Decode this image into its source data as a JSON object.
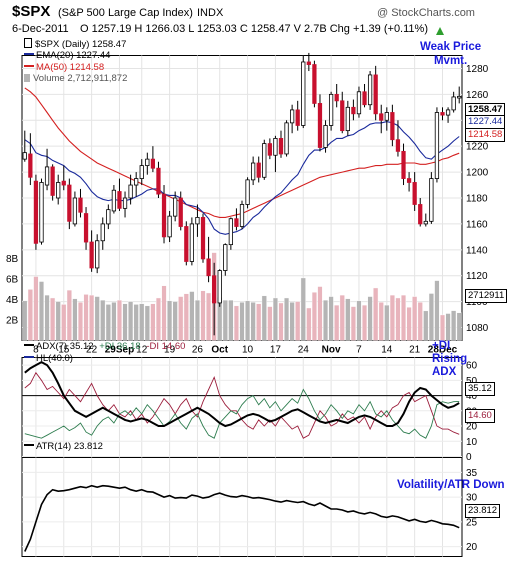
{
  "header": {
    "symbol": "$SPX",
    "name": "(S&P 500 Large Cap Index)",
    "exchange": "INDX",
    "credit": "@ StockCharts.com",
    "date": "6-Dec-2011",
    "ohlc": "O 1257.19  H 1266.03  L 1253.03  C 1258.47  V 2.7B  Chg +1.39 (+0.11%)",
    "chg_icon": "up-triangle-icon"
  },
  "legend": {
    "price": "$SPX (Daily) 1258.47",
    "ema": "EMA(20) 1227.44",
    "ma": "MA(50) 1214.58",
    "volume": "Volume 2,712,911,872",
    "adx": "ADX(7) 35.12",
    "pdi": "+DI 36.18",
    "mdi": "-DI 14.60",
    "hl": "HL(40.0)",
    "atr": "ATR(14) 23.812"
  },
  "annotations": {
    "weak_price": "Weak Price\nMvmt.",
    "di_rising": "+DI\nRising\nADX",
    "volatility": "Volatility/ATR Down"
  },
  "value_labels": {
    "close": "1258.47",
    "ema": "1227.44",
    "ma": "1214.58",
    "volume": "2712911",
    "adx": "35.12",
    "mdi": "14.60",
    "atr": "23.812"
  },
  "colors": {
    "up": "#ffffff",
    "down": "#c8102e",
    "ema": "#1a2a9c",
    "ma": "#d42020",
    "vol_up": "#b4b4b4",
    "vol_down": "#e8b4bc",
    "adx": "#000000",
    "pdi": "#2e7d4f",
    "mdi": "#9c1e3c",
    "annotation": "#1a1adc"
  },
  "chart_data": [
    {
      "type": "candlestick",
      "title": "$SPX (Daily)",
      "y_ticks": [
        1080,
        1100,
        1120,
        1140,
        1160,
        1180,
        1200,
        1220,
        1240,
        1260,
        1280
      ],
      "ylim": [
        1070,
        1290
      ],
      "x_tick_labels": [
        "8",
        "15",
        "22",
        "29Sep",
        "12",
        "19",
        "26",
        "Oct",
        "10",
        "17",
        "24",
        "Nov",
        "7",
        "14",
        "21",
        "28Dec"
      ],
      "x_tick_index": [
        2,
        7,
        12,
        17,
        21,
        26,
        31,
        35,
        40,
        45,
        50,
        55,
        60,
        65,
        70,
        75
      ],
      "candles": [
        [
          1210,
          1232,
          1208,
          1215
        ],
        [
          1214,
          1230,
          1190,
          1196
        ],
        [
          1193,
          1198,
          1140,
          1145
        ],
        [
          1146,
          1195,
          1144,
          1192
        ],
        [
          1190,
          1218,
          1186,
          1204
        ],
        [
          1204,
          1206,
          1178,
          1182
        ],
        [
          1180,
          1198,
          1175,
          1192
        ],
        [
          1193,
          1205,
          1186,
          1190
        ],
        [
          1190,
          1195,
          1156,
          1162
        ],
        [
          1160,
          1185,
          1158,
          1180
        ],
        [
          1180,
          1187,
          1165,
          1169
        ],
        [
          1168,
          1173,
          1140,
          1146
        ],
        [
          1146,
          1155,
          1123,
          1126
        ],
        [
          1126,
          1152,
          1122,
          1147
        ],
        [
          1147,
          1165,
          1140,
          1160
        ],
        [
          1160,
          1175,
          1156,
          1171
        ],
        [
          1170,
          1190,
          1168,
          1186
        ],
        [
          1185,
          1195,
          1170,
          1172
        ],
        [
          1172,
          1185,
          1165,
          1180
        ],
        [
          1180,
          1198,
          1175,
          1190
        ],
        [
          1190,
          1200,
          1181,
          1195
        ],
        [
          1195,
          1210,
          1190,
          1205
        ],
        [
          1205,
          1215,
          1198,
          1210
        ],
        [
          1210,
          1220,
          1200,
          1203
        ],
        [
          1203,
          1208,
          1180,
          1183
        ],
        [
          1183,
          1190,
          1145,
          1150
        ],
        [
          1150,
          1170,
          1146,
          1166
        ],
        [
          1166,
          1185,
          1162,
          1180
        ],
        [
          1180,
          1185,
          1155,
          1158
        ],
        [
          1158,
          1162,
          1128,
          1131
        ],
        [
          1131,
          1165,
          1128,
          1160
        ],
        [
          1160,
          1175,
          1150,
          1165
        ],
        [
          1165,
          1168,
          1130,
          1133
        ],
        [
          1133,
          1150,
          1115,
          1120
        ],
        [
          1120,
          1130,
          1074,
          1099
        ],
        [
          1099,
          1125,
          1096,
          1124
        ],
        [
          1124,
          1145,
          1120,
          1144
        ],
        [
          1144,
          1165,
          1140,
          1164
        ],
        [
          1164,
          1172,
          1155,
          1158
        ],
        [
          1158,
          1178,
          1156,
          1175
        ],
        [
          1175,
          1196,
          1172,
          1194
        ],
        [
          1194,
          1212,
          1190,
          1207
        ],
        [
          1207,
          1212,
          1192,
          1196
        ],
        [
          1196,
          1225,
          1194,
          1222
        ],
        [
          1222,
          1226,
          1210,
          1213
        ],
        [
          1213,
          1228,
          1200,
          1226
        ],
        [
          1226,
          1232,
          1211,
          1214
        ],
        [
          1214,
          1240,
          1212,
          1238
        ],
        [
          1238,
          1252,
          1230,
          1248
        ],
        [
          1248,
          1255,
          1232,
          1236
        ],
        [
          1236,
          1290,
          1234,
          1285
        ],
        [
          1285,
          1292,
          1278,
          1283
        ],
        [
          1283,
          1286,
          1250,
          1253
        ],
        [
          1253,
          1260,
          1216,
          1219
        ],
        [
          1219,
          1240,
          1215,
          1236
        ],
        [
          1236,
          1262,
          1232,
          1260
        ],
        [
          1260,
          1268,
          1250,
          1255
        ],
        [
          1255,
          1262,
          1230,
          1232
        ],
        [
          1232,
          1255,
          1228,
          1250
        ],
        [
          1250,
          1256,
          1240,
          1245
        ],
        [
          1245,
          1266,
          1242,
          1262
        ],
        [
          1262,
          1268,
          1250,
          1252
        ],
        [
          1252,
          1278,
          1248,
          1275
        ],
        [
          1275,
          1282,
          1240,
          1245
        ],
        [
          1245,
          1252,
          1230,
          1240
        ],
        [
          1240,
          1250,
          1232,
          1246
        ],
        [
          1246,
          1252,
          1220,
          1225
        ],
        [
          1225,
          1240,
          1212,
          1216
        ],
        [
          1216,
          1222,
          1190,
          1195
        ],
        [
          1195,
          1200,
          1185,
          1192
        ],
        [
          1192,
          1200,
          1170,
          1175
        ],
        [
          1175,
          1180,
          1158,
          1160
        ],
        [
          1160,
          1168,
          1158,
          1162
        ],
        [
          1162,
          1200,
          1160,
          1195
        ],
        [
          1195,
          1250,
          1192,
          1246
        ],
        [
          1246,
          1250,
          1240,
          1244
        ],
        [
          1244,
          1250,
          1238,
          1248
        ],
        [
          1248,
          1262,
          1246,
          1258
        ],
        [
          1257.19,
          1266.03,
          1253.03,
          1258.47
        ]
      ],
      "ema20": [
        1225,
        1222,
        1215,
        1213,
        1212,
        1209,
        1207,
        1205,
        1201,
        1199,
        1196,
        1191,
        1185,
        1181,
        1179,
        1178,
        1179,
        1178,
        1178,
        1179,
        1181,
        1183,
        1186,
        1187,
        1187,
        1183,
        1182,
        1182,
        1180,
        1175,
        1174,
        1173,
        1169,
        1164,
        1156,
        1153,
        1152,
        1153,
        1154,
        1156,
        1160,
        1165,
        1168,
        1173,
        1177,
        1181,
        1184,
        1189,
        1194,
        1198,
        1206,
        1213,
        1217,
        1217,
        1219,
        1223,
        1226,
        1226,
        1228,
        1229,
        1232,
        1234,
        1237,
        1238,
        1238,
        1239,
        1238,
        1236,
        1231,
        1227,
        1222,
        1216,
        1211,
        1210,
        1214,
        1217,
        1220,
        1224,
        1227.44
      ],
      "ma50": [
        1265,
        1262,
        1258,
        1252,
        1246,
        1240,
        1234,
        1229,
        1224,
        1220,
        1216,
        1213,
        1210,
        1207,
        1205,
        1203,
        1201,
        1199,
        1197,
        1195,
        1193,
        1191,
        1189,
        1187,
        1185,
        1183,
        1181,
        1179,
        1177,
        1175,
        1173,
        1171,
        1169,
        1168,
        1166,
        1165,
        1165,
        1166,
        1167,
        1168,
        1170,
        1172,
        1174,
        1176,
        1178,
        1180,
        1182,
        1184,
        1186,
        1188,
        1190,
        1192,
        1194,
        1196,
        1197,
        1198,
        1199,
        1200,
        1201,
        1202,
        1203,
        1203,
        1204,
        1205,
        1205,
        1206,
        1206,
        1206,
        1207,
        1207,
        1207,
        1206,
        1206,
        1207,
        1208,
        1210,
        1211,
        1213,
        1214.58
      ]
    },
    {
      "type": "bar",
      "title": "Volume",
      "y_ticks": [
        "2B",
        "4B",
        "6B",
        "8B"
      ],
      "ylim": [
        0,
        9
      ],
      "unit": "billions"
    },
    {
      "type": "line",
      "title": "ADX(7) / +DI / -DI",
      "y_ticks": [
        0,
        10,
        20,
        30,
        40,
        50,
        60
      ],
      "ylim": [
        0,
        65
      ],
      "hline": 40,
      "series": [
        {
          "name": "ADX(7)",
          "values": [
            55,
            58,
            60,
            62,
            60,
            55,
            48,
            40,
            35,
            30,
            28,
            26,
            28,
            30,
            32,
            30,
            28,
            26,
            24,
            23,
            24,
            25,
            24,
            22,
            20,
            20,
            22,
            24,
            26,
            28,
            30,
            32,
            30,
            28,
            25,
            22,
            20,
            21,
            23,
            25,
            27,
            28,
            27,
            25,
            23,
            24,
            26,
            28,
            30,
            31,
            29,
            27,
            25,
            23,
            22,
            23,
            24,
            23,
            22,
            24,
            26,
            27,
            26,
            24,
            22,
            20,
            20,
            22,
            28,
            36,
            42,
            45,
            44,
            40,
            37,
            34,
            32,
            33,
            35.12
          ]
        },
        {
          "name": "+DI",
          "values": [
            15,
            14,
            13,
            12,
            14,
            16,
            18,
            20,
            17,
            19,
            22,
            16,
            14,
            20,
            24,
            26,
            22,
            28,
            30,
            27,
            32,
            28,
            34,
            30,
            25,
            20,
            23,
            28,
            22,
            18,
            25,
            28,
            20,
            14,
            12,
            22,
            26,
            30,
            28,
            34,
            38,
            40,
            34,
            38,
            32,
            36,
            30,
            34,
            38,
            35,
            44,
            38,
            30,
            24,
            28,
            34,
            30,
            25,
            30,
            28,
            34,
            30,
            36,
            28,
            26,
            30,
            24,
            20,
            16,
            15,
            18,
            14,
            12,
            20,
            34,
            36,
            35,
            36,
            36.18
          ]
        },
        {
          "name": "-DI",
          "values": [
            45,
            48,
            55,
            50,
            44,
            46,
            42,
            38,
            44,
            40,
            36,
            42,
            48,
            40,
            34,
            30,
            34,
            28,
            26,
            30,
            24,
            28,
            22,
            26,
            32,
            38,
            34,
            28,
            34,
            38,
            30,
            26,
            36,
            44,
            52,
            40,
            34,
            30,
            30,
            24,
            20,
            18,
            24,
            20,
            24,
            20,
            26,
            22,
            18,
            20,
            12,
            14,
            22,
            30,
            26,
            20,
            22,
            28,
            24,
            26,
            22,
            26,
            18,
            26,
            30,
            26,
            32,
            34,
            40,
            42,
            36,
            38,
            40,
            30,
            20,
            18,
            18,
            16,
            14.6
          ]
        }
      ]
    },
    {
      "type": "line",
      "title": "ATR(14)",
      "y_ticks": [
        20,
        25,
        30,
        35
      ],
      "ylim": [
        18,
        38
      ],
      "series": [
        {
          "name": "ATR(14)",
          "values": [
            19,
            21.5,
            25,
            28.5,
            30.5,
            31.5,
            31.2,
            31.3,
            31.5,
            31.8,
            32.1,
            31.9,
            32.3,
            32.0,
            32.3,
            32.2,
            32.0,
            31.8,
            32.0,
            31.5,
            31.2,
            31.5,
            31.1,
            31.0,
            30.5,
            30.0,
            30.3,
            29.8,
            29.9,
            29.8,
            30.4,
            30.2,
            29.8,
            30.0,
            30.5,
            30.8,
            30.4,
            30.1,
            30.0,
            30.3,
            30.1,
            29.8,
            29.9,
            29.7,
            29.5,
            29.2,
            29.0,
            29.3,
            29.1,
            28.9,
            29.1,
            28.6,
            28.3,
            28.8,
            28.2,
            27.6,
            27.6,
            27.4,
            27.0,
            27.2,
            26.8,
            26.6,
            26.9,
            26.6,
            26.1,
            25.9,
            26.2,
            26.0,
            25.6,
            25.2,
            25.5,
            25.1,
            24.9,
            25.3,
            25.0,
            24.6,
            24.5,
            24.3,
            23.812
          ]
        }
      ]
    }
  ]
}
